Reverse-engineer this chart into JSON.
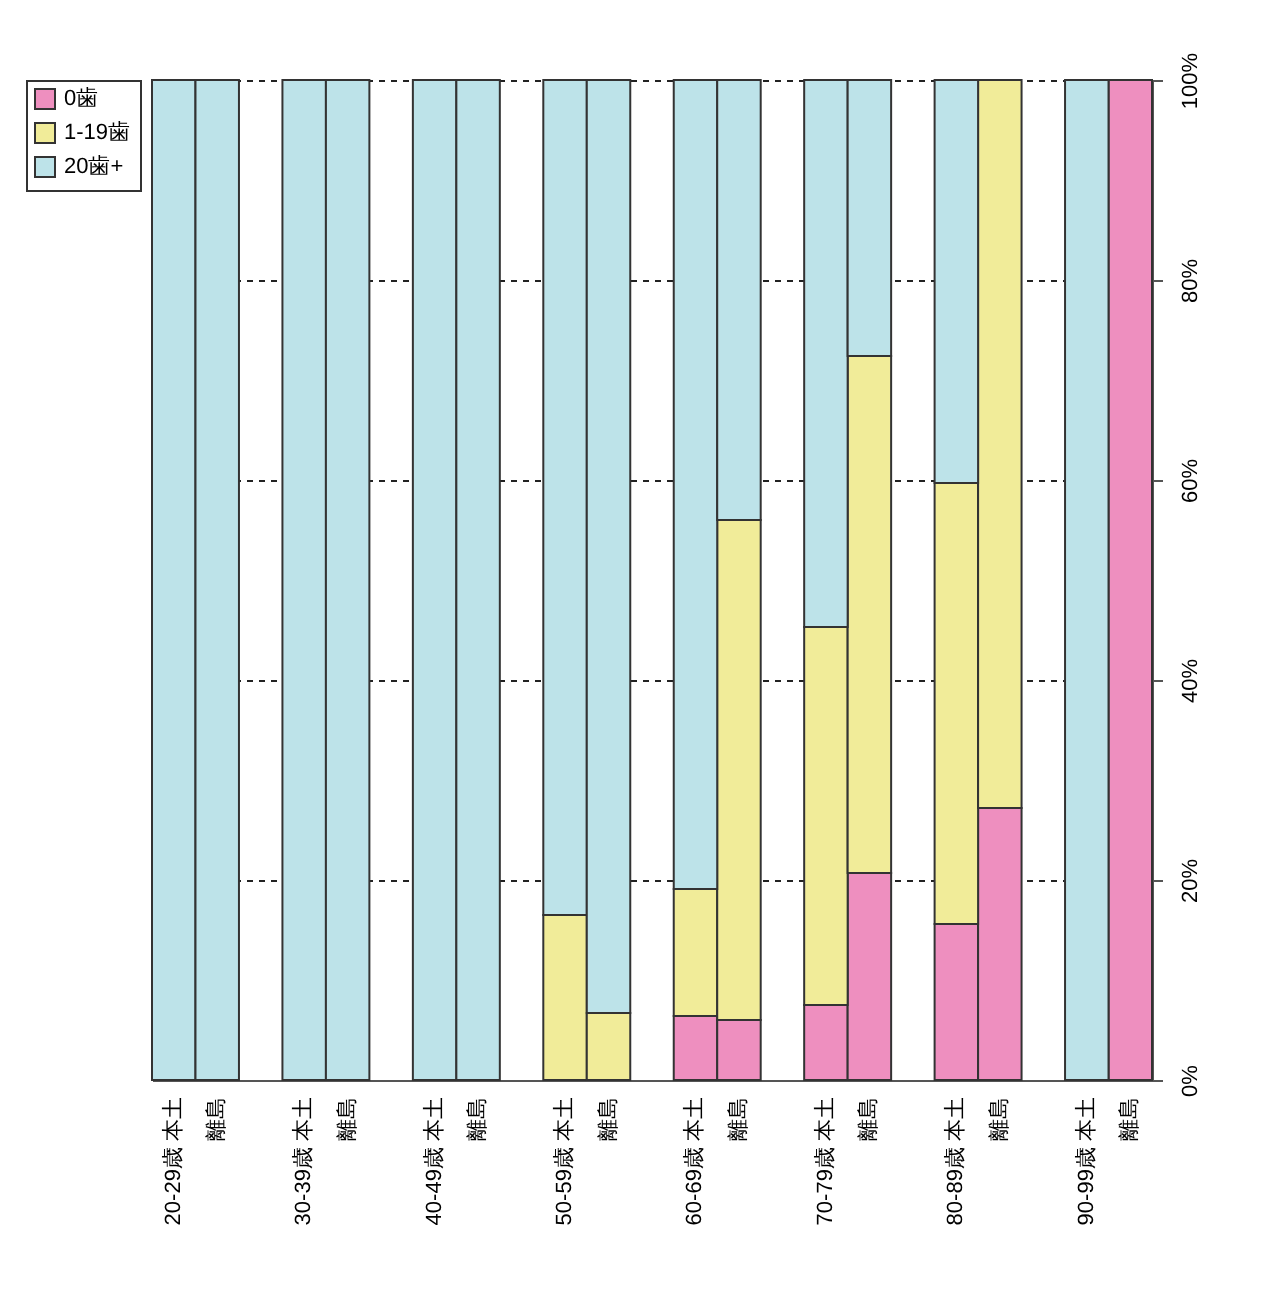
{
  "chart_data": {
    "type": "bar",
    "stacked": true,
    "categories": [
      "20-29歳 本土",
      "離島",
      "30-39歳 本土",
      "離島",
      "40-49歳 本土",
      "離島",
      "50-59歳 本土",
      "離島",
      "60-69歳 本土",
      "離島",
      "70-79歳 本土",
      "離島",
      "80-89歳 本土",
      "離島",
      "90-99歳 本土",
      "離島"
    ],
    "series": [
      {
        "name": "0歯",
        "color": "#ee8fbf",
        "values": [
          null,
          null,
          null,
          null,
          null,
          null,
          null,
          null,
          6.4,
          6.0,
          7.5,
          20.7,
          15.6,
          27.2,
          null,
          100
        ]
      },
      {
        "name": "1-19歯",
        "color": "#f1ec99",
        "values": [
          null,
          null,
          null,
          null,
          null,
          null,
          16.5,
          6.7,
          12.7,
          50.0,
          37.8,
          51.7,
          44.1,
          72.8,
          null,
          null
        ]
      },
      {
        "name": "20歯+",
        "color": "#bde3e9",
        "values": [
          100,
          100,
          100,
          100,
          100,
          100,
          83.5,
          93.3,
          80.9,
          44.0,
          54.7,
          27.6,
          40.3,
          null,
          100,
          null
        ]
      }
    ],
    "ylim": [
      0,
      100
    ],
    "yticks": [
      {
        "value": 0,
        "label": "0%"
      },
      {
        "value": 20,
        "label": "20%"
      },
      {
        "value": 40,
        "label": "40%"
      },
      {
        "value": 60,
        "label": "60%"
      },
      {
        "value": 80,
        "label": "80%"
      },
      {
        "value": 100,
        "label": "100%"
      }
    ],
    "grid": "y",
    "legend": "left"
  }
}
